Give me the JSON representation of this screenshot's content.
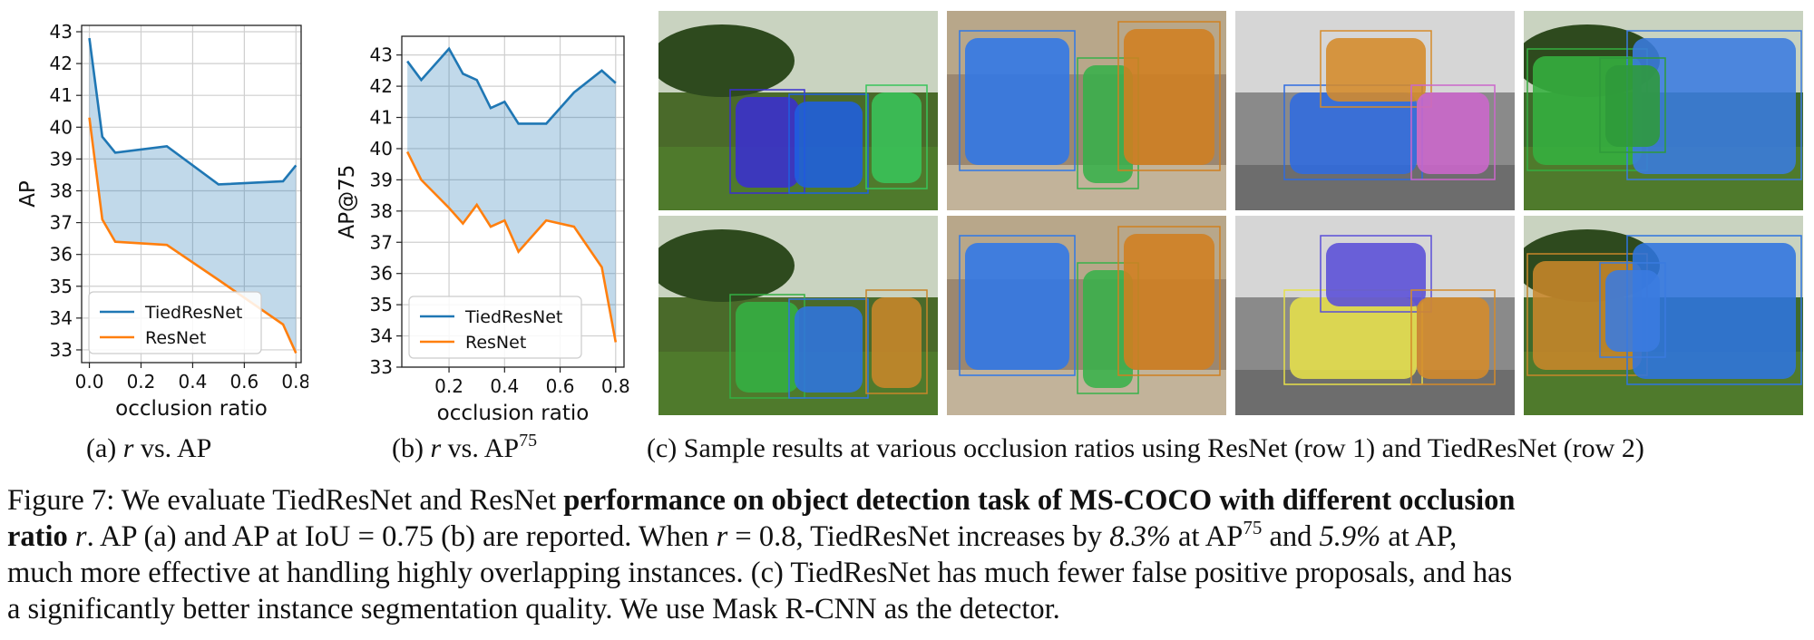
{
  "chart_data": [
    {
      "type": "area",
      "subcaption": {
        "prefix": "(a) ",
        "var": "r",
        "mid": " vs. ",
        "metric": "AP",
        "sup": ""
      },
      "xlabel": "occlusion ratio",
      "ylabel": "AP",
      "xlim": [
        -0.03,
        0.82
      ],
      "ylim": [
        32.6,
        43.2
      ],
      "xticks": [
        0.0,
        0.2,
        0.4,
        0.6,
        0.8
      ],
      "xtick_labels": [
        "0.0",
        "0.2",
        "0.4",
        "0.6",
        "0.8"
      ],
      "yticks": [
        33,
        34,
        35,
        36,
        37,
        38,
        39,
        40,
        41,
        42,
        43
      ],
      "grid": true,
      "legend_position": "lower-left",
      "fill_between": true,
      "series": [
        {
          "name": "TiedResNet",
          "color": "#1f77b4",
          "x": [
            0.0,
            0.05,
            0.1,
            0.3,
            0.5,
            0.75,
            0.8
          ],
          "y": [
            42.8,
            39.7,
            39.2,
            39.4,
            38.2,
            38.3,
            38.8
          ]
        },
        {
          "name": "ResNet",
          "color": "#ff7f0e",
          "x": [
            0.0,
            0.05,
            0.1,
            0.3,
            0.5,
            0.75,
            0.8
          ],
          "y": [
            40.3,
            37.1,
            36.4,
            36.3,
            35.2,
            33.8,
            32.9
          ]
        }
      ]
    },
    {
      "type": "area",
      "subcaption": {
        "prefix": "(b) ",
        "var": "r",
        "mid": " vs. ",
        "metric": "AP",
        "sup": "75"
      },
      "xlabel": "occlusion ratio",
      "ylabel": "AP@75",
      "xlim": [
        0.03,
        0.83
      ],
      "ylim": [
        33,
        43.6
      ],
      "xticks": [
        0.2,
        0.4,
        0.6,
        0.8
      ],
      "xtick_labels": [
        "0.2",
        "0.4",
        "0.6",
        "0.8"
      ],
      "yticks": [
        33,
        34,
        35,
        36,
        37,
        38,
        39,
        40,
        41,
        42,
        43
      ],
      "grid": true,
      "legend_position": "lower-left",
      "fill_between": true,
      "series": [
        {
          "name": "TiedResNet",
          "color": "#1f77b4",
          "x": [
            0.05,
            0.1,
            0.2,
            0.25,
            0.3,
            0.35,
            0.4,
            0.45,
            0.55,
            0.65,
            0.75,
            0.8
          ],
          "y": [
            42.8,
            42.2,
            43.2,
            42.4,
            42.2,
            41.3,
            41.5,
            40.8,
            40.8,
            41.8,
            42.5,
            42.1
          ]
        },
        {
          "name": "ResNet",
          "color": "#ff7f0e",
          "x": [
            0.05,
            0.1,
            0.2,
            0.25,
            0.3,
            0.35,
            0.4,
            0.45,
            0.55,
            0.65,
            0.75,
            0.8
          ],
          "y": [
            39.9,
            39.0,
            38.1,
            37.6,
            38.2,
            37.5,
            37.7,
            36.7,
            37.7,
            37.5,
            36.2,
            33.8
          ]
        }
      ]
    }
  ],
  "figure": {
    "subcaption_c": "(c) Sample results at various occlusion ratios using ResNet (row 1) and TiedResNet (row 2)",
    "images": [
      {
        "alt": "zebras ResNet",
        "bg": "#4a6a2a",
        "mask1": "#3a2fd0",
        "mask2": "#1f5fe0",
        "mask3": "#39c45a"
      },
      {
        "alt": "elephants ResNet",
        "bg": "#9b8770",
        "mask1": "#2f78e8",
        "mask2": "#37b04a",
        "mask3": "#d08020"
      },
      {
        "alt": "crowd ResNet",
        "bg": "#8a8a8a",
        "mask1": "#2f6be0",
        "mask2": "#d58b2a",
        "mask3": "#cc66cc"
      },
      {
        "alt": "zebra horse ResNet",
        "bg": "#3f6a2c",
        "mask1": "#35b040",
        "mask2": "#3a7be0",
        "mask3": "#2f9a3a"
      },
      {
        "alt": "zebras TiedResNet",
        "bg": "#4a6a2a",
        "mask1": "#34b043",
        "mask2": "#2f74e0",
        "mask3": "#c8862a"
      },
      {
        "alt": "elephants TiedResNet",
        "bg": "#9b8770",
        "mask1": "#2f78e8",
        "mask2": "#38b24a",
        "mask3": "#d08020"
      },
      {
        "alt": "crowd TiedResNet",
        "bg": "#8a8a8a",
        "mask1": "#e6e04a",
        "mask2": "#5a4fd8",
        "mask3": "#d58b2a"
      },
      {
        "alt": "zebra horse TiedResNet",
        "bg": "#3f6a2c",
        "mask1": "#c8862a",
        "mask2": "#2f74e0",
        "mask3": "#3a7be0"
      }
    ]
  },
  "caption": {
    "lines": [
      [
        {
          "t": "Figure 7: We evaluate TiedResNet and ResNet "
        },
        {
          "t": "performance on object detection task of MS-COCO with different occlusion",
          "b": true
        }
      ],
      [
        {
          "t": "ratio",
          "b": true
        },
        {
          "t": " "
        },
        {
          "t": "r",
          "i": true
        },
        {
          "t": ". AP (a) and AP at IoU = 0.75 (b) are reported. When "
        },
        {
          "t": "r",
          "i": true
        },
        {
          "t": " = 0.8, TiedResNet increases by "
        },
        {
          "t": "8.3%",
          "i": true
        },
        {
          "t": " at AP"
        },
        {
          "t": "75",
          "sup": true
        },
        {
          "t": " and "
        },
        {
          "t": "5.9%",
          "i": true
        },
        {
          "t": " at AP,"
        }
      ],
      [
        {
          "t": "much more effective at handling highly overlapping instances. (c) TiedResNet has much fewer false positive proposals, and has"
        }
      ],
      [
        {
          "t": "a significantly better instance segmentation quality. We use Mask R-CNN as the detector."
        }
      ]
    ]
  }
}
